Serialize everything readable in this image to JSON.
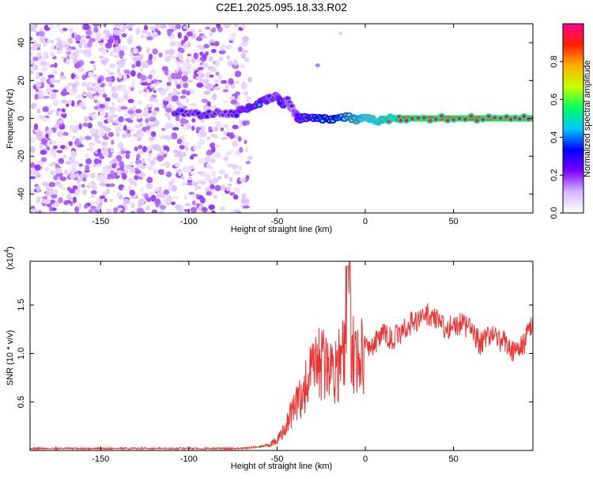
{
  "title": "C2E1.2025.095.18.33.R02",
  "chart_data": [
    {
      "type": "scatter",
      "subtype": "spectrogram",
      "xlabel": "Height of straight line (km)",
      "ylabel": "Frequency (Hz)",
      "xlim": [
        -190,
        95
      ],
      "ylim": [
        -50,
        50
      ],
      "xticks": [
        -150,
        -100,
        -50,
        0,
        50
      ],
      "yticks": [
        -40,
        -20,
        0,
        20,
        40
      ],
      "colorbar": {
        "label": "Normalized spectral amplitude",
        "range": [
          0,
          1
        ],
        "ticks": [
          0,
          0.2,
          0.4,
          0.6,
          0.8
        ],
        "colormap": [
          "#ffffff",
          "#d8b8ff",
          "#7b00ff",
          "#0000ff",
          "#00c8ff",
          "#00ff60",
          "#c8ff00",
          "#ffb000",
          "#ff2000",
          "#ff0090"
        ]
      },
      "series": [
        {
          "description_of": "signal ridge",
          "x": [
            -108,
            -100,
            -92,
            -85,
            -78,
            -72,
            -66,
            -60,
            -55,
            -50,
            -47,
            -44,
            -42,
            -40,
            -38,
            -35,
            -30,
            -25,
            -20,
            -15,
            -10,
            -5,
            0,
            5,
            10,
            15,
            20,
            40,
            60,
            80,
            95
          ],
          "y": [
            3,
            3,
            2,
            3,
            2,
            3,
            6,
            8,
            10,
            12,
            7,
            10,
            6,
            3,
            0,
            0,
            1,
            0,
            0,
            0,
            1,
            -1,
            0,
            -1,
            -1,
            0,
            0,
            0,
            0,
            0,
            0
          ],
          "amplitude": [
            0.35,
            0.3,
            0.35,
            0.3,
            0.3,
            0.35,
            0.4,
            0.45,
            0.35,
            0.3,
            0.5,
            0.3,
            0.3,
            0.25,
            0.4,
            0.45,
            0.5,
            0.55,
            0.6,
            0.65,
            0.7,
            0.75,
            0.8,
            0.82,
            0.85,
            0.88,
            0.9,
            0.92,
            0.94,
            0.95,
            0.95
          ]
        }
      ]
    },
    {
      "type": "line",
      "xlabel": "Height of straight line (km)",
      "ylabel": "SNR (10 * v/v)",
      "y_multiplier": "(x10",
      "y_multiplier_exp": "4",
      "xlim": [
        -190,
        95
      ],
      "ylim": [
        0,
        1.95
      ],
      "xticks": [
        -150,
        -100,
        -50,
        0,
        50
      ],
      "yticks": [
        0.5,
        1.0,
        1.5
      ],
      "color": "#ee3333",
      "series": [
        {
          "x": [
            -190,
            -150,
            -100,
            -80,
            -70,
            -60,
            -55,
            -50,
            -45,
            -40,
            -35,
            -30,
            -25,
            -20,
            -15,
            -12,
            -10,
            -8,
            -5,
            0,
            5,
            10,
            15,
            20,
            25,
            30,
            35,
            40,
            45,
            50,
            55,
            60,
            65,
            70,
            75,
            80,
            85,
            90,
            95
          ],
          "y": [
            0.02,
            0.02,
            0.02,
            0.02,
            0.02,
            0.04,
            0.06,
            0.1,
            0.25,
            0.45,
            0.6,
            0.8,
            0.9,
            0.85,
            0.9,
            0.95,
            1.9,
            1.1,
            0.95,
            1.05,
            1.1,
            1.2,
            1.15,
            1.2,
            1.3,
            1.35,
            1.4,
            1.38,
            1.25,
            1.3,
            1.3,
            1.25,
            1.1,
            1.2,
            1.15,
            1.1,
            1.0,
            1.1,
            1.35
          ]
        }
      ]
    }
  ]
}
